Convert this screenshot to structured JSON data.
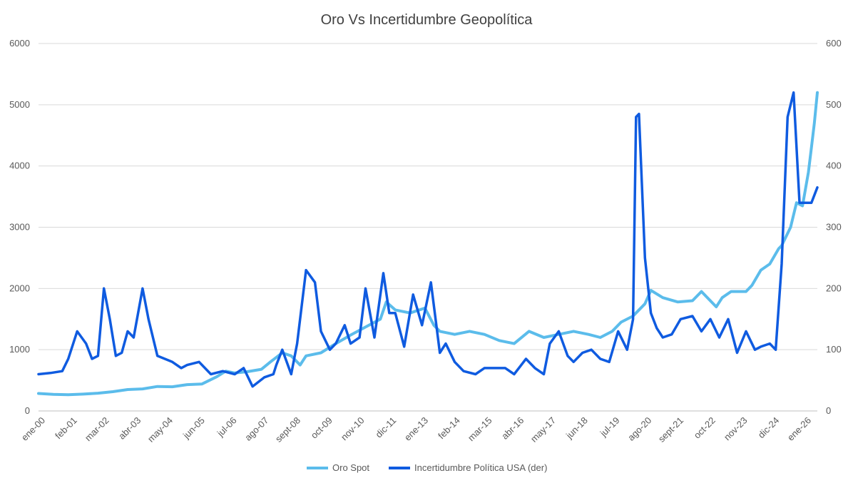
{
  "chart_data": {
    "type": "line",
    "title": "Oro Vs Incertidumbre Geopolítica",
    "xlabel": "",
    "ylabel_left": "",
    "ylabel_right": "",
    "ylim_left": [
      0,
      6000
    ],
    "ylim_right": [
      0,
      600
    ],
    "yticks_left": [
      0,
      1000,
      2000,
      3000,
      4000,
      5000,
      6000
    ],
    "yticks_right": [
      0,
      100,
      200,
      300,
      400,
      500,
      600
    ],
    "x_tick_labels": [
      "ene-00",
      "feb-01",
      "mar-02",
      "abr-03",
      "may-04",
      "jun-05",
      "jul-06",
      "ago-07",
      "sept-08",
      "oct-09",
      "nov-10",
      "dic-11",
      "ene-13",
      "feb-14",
      "mar-15",
      "abr-16",
      "may-17",
      "jun-18",
      "jul-19",
      "ago-20",
      "sept-21",
      "oct-22",
      "nov-23",
      "dic-24",
      "ene-26"
    ],
    "x_range": [
      2000.0,
      2026.2
    ],
    "legend_position": "bottom",
    "grid": true,
    "series": [
      {
        "name": "Oro Spot",
        "axis": "left",
        "color": "#5BBCEB",
        "x": [
          2000.0,
          2000.5,
          2001.0,
          2001.5,
          2002.0,
          2002.5,
          2003.0,
          2003.5,
          2004.0,
          2004.5,
          2005.0,
          2005.5,
          2006.0,
          2006.3,
          2006.6,
          2007.0,
          2007.5,
          2007.8,
          2008.2,
          2008.5,
          2008.8,
          2009.0,
          2009.5,
          2010.0,
          2010.5,
          2011.0,
          2011.5,
          2011.7,
          2012.0,
          2012.5,
          2013.0,
          2013.3,
          2013.5,
          2014.0,
          2014.5,
          2015.0,
          2015.5,
          2016.0,
          2016.5,
          2017.0,
          2017.5,
          2018.0,
          2018.5,
          2018.9,
          2019.3,
          2019.6,
          2020.0,
          2020.4,
          2020.6,
          2021.0,
          2021.5,
          2022.0,
          2022.3,
          2022.8,
          2023.0,
          2023.3,
          2023.8,
          2024.0,
          2024.3,
          2024.6,
          2024.9,
          2025.0,
          2025.3,
          2025.5,
          2025.7,
          2025.9,
          2026.0,
          2026.1,
          2026.2
        ],
        "values": [
          285,
          270,
          265,
          275,
          290,
          315,
          350,
          360,
          400,
          395,
          430,
          440,
          560,
          650,
          620,
          640,
          680,
          800,
          950,
          900,
          750,
          900,
          950,
          1100,
          1240,
          1370,
          1500,
          1780,
          1650,
          1600,
          1680,
          1400,
          1300,
          1250,
          1300,
          1250,
          1150,
          1100,
          1300,
          1200,
          1250,
          1300,
          1250,
          1200,
          1300,
          1450,
          1550,
          1750,
          1970,
          1850,
          1780,
          1800,
          1950,
          1700,
          1850,
          1950,
          1950,
          2050,
          2300,
          2400,
          2650,
          2700,
          3000,
          3400,
          3350,
          3900,
          4300,
          4700,
          5200
        ]
      },
      {
        "name": "Incertidumbre Política USA (der)",
        "axis": "right",
        "color": "#0F5BE0",
        "x": [
          2000.0,
          2000.4,
          2000.8,
          2001.0,
          2001.3,
          2001.6,
          2001.8,
          2002.0,
          2002.2,
          2002.4,
          2002.6,
          2002.8,
          2003.0,
          2003.2,
          2003.5,
          2003.7,
          2004.0,
          2004.5,
          2004.8,
          2005.0,
          2005.4,
          2005.8,
          2006.2,
          2006.6,
          2006.9,
          2007.2,
          2007.6,
          2007.9,
          2008.0,
          2008.2,
          2008.5,
          2008.7,
          2009.0,
          2009.3,
          2009.5,
          2009.8,
          2010.0,
          2010.3,
          2010.5,
          2010.8,
          2011.0,
          2011.3,
          2011.6,
          2011.8,
          2012.0,
          2012.3,
          2012.6,
          2012.9,
          2013.2,
          2013.5,
          2013.7,
          2014.0,
          2014.3,
          2014.7,
          2015.0,
          2015.4,
          2015.7,
          2016.0,
          2016.4,
          2016.7,
          2017.0,
          2017.2,
          2017.5,
          2017.8,
          2018.0,
          2018.3,
          2018.6,
          2018.9,
          2019.2,
          2019.5,
          2019.8,
          2020.0,
          2020.1,
          2020.2,
          2020.4,
          2020.6,
          2020.8,
          2021.0,
          2021.3,
          2021.6,
          2022.0,
          2022.3,
          2022.6,
          2022.9,
          2023.2,
          2023.5,
          2023.8,
          2024.1,
          2024.3,
          2024.6,
          2024.8,
          2025.0,
          2025.2,
          2025.4,
          2025.6,
          2025.8,
          2026.0,
          2026.2
        ],
        "values": [
          60,
          62,
          65,
          85,
          130,
          110,
          85,
          90,
          200,
          150,
          90,
          95,
          130,
          120,
          200,
          150,
          90,
          80,
          70,
          75,
          80,
          60,
          65,
          60,
          70,
          40,
          55,
          60,
          75,
          100,
          60,
          110,
          230,
          210,
          130,
          100,
          110,
          140,
          110,
          120,
          200,
          120,
          225,
          160,
          160,
          105,
          190,
          140,
          210,
          95,
          110,
          80,
          65,
          60,
          70,
          70,
          70,
          60,
          85,
          70,
          60,
          110,
          130,
          90,
          80,
          95,
          100,
          85,
          80,
          130,
          100,
          150,
          480,
          485,
          250,
          160,
          135,
          120,
          125,
          150,
          155,
          130,
          150,
          120,
          150,
          95,
          130,
          100,
          105,
          110,
          100,
          240,
          480,
          520,
          340,
          340,
          340,
          365
        ]
      }
    ]
  }
}
